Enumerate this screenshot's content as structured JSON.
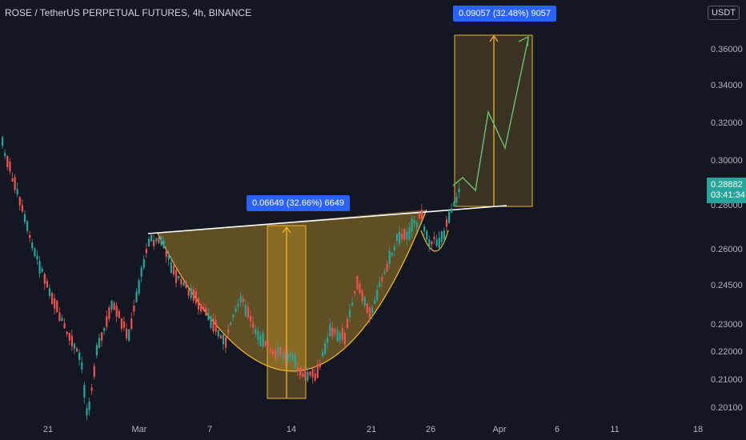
{
  "header": {
    "title": "ROSE / TetherUS PERPETUAL FUTURES, 4h, BINANCE",
    "unit": "USDT"
  },
  "price_axis": {
    "ticks": [
      "0.36000",
      "0.34000",
      "0.32000",
      "0.30000",
      "0.28000",
      "0.26000",
      "0.24500",
      "0.23000",
      "0.22000",
      "0.21000",
      "0.20100"
    ],
    "current_price": "0.28882",
    "countdown": "03:41:34"
  },
  "time_axis": {
    "ticks": [
      "21",
      "Mar",
      "7",
      "14",
      "21",
      "26",
      "Apr",
      "6",
      "11",
      "18"
    ]
  },
  "annotations": {
    "cup_measure": "0.06649 (32.66%) 6649",
    "target_measure": "0.09057 (32.48%) 9057"
  },
  "colors": {
    "background": "#131722",
    "up": "#26a69a",
    "down": "#ef5350",
    "cup_fill": "#f0b429",
    "projection": "#66bb6a",
    "label": "#2962ff"
  }
}
